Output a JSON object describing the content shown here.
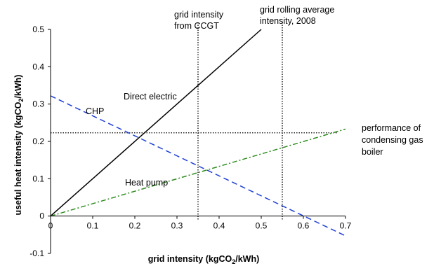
{
  "chart_data": {
    "type": "line",
    "xlabel": "grid intensity (kgCO",
    "xlabel_sub": "2",
    "xlabel_end": "/kWh)",
    "ylabel": "useful heat intensity (kgCO",
    "ylabel_sub": "2",
    "ylabel_end": "/kWh)",
    "xlim": [
      0,
      0.7
    ],
    "ylim": [
      -0.1,
      0.5
    ],
    "x_ticks": [
      "0",
      "0.1",
      "0.2",
      "0.3",
      "0.4",
      "0.5",
      "0.6",
      "0.7"
    ],
    "y_ticks": [
      "-0.1",
      "0",
      "0.1",
      "0.2",
      "0.3",
      "0.4",
      "0.5"
    ],
    "grid": false,
    "series": [
      {
        "name": "Direct electric",
        "color": "#000000",
        "style": "solid",
        "x": [
          0,
          0.5
        ],
        "y": [
          0,
          0.5
        ]
      },
      {
        "name": "CHP",
        "color": "#1f3fd6",
        "style": "dashed",
        "x": [
          0,
          0.7
        ],
        "y": [
          0.322,
          -0.053
        ]
      },
      {
        "name": "Heat pump",
        "color": "#2e8b1e",
        "style": "dash-dot",
        "x": [
          0,
          0.7
        ],
        "y": [
          0,
          0.233
        ]
      }
    ],
    "reference_lines": [
      {
        "orientation": "vertical",
        "x": 0.35,
        "label_lines": [
          "grid intensity",
          "from CCGT"
        ]
      },
      {
        "orientation": "vertical",
        "x": 0.55,
        "label_lines": [
          "grid rolling average",
          "intensity, 2008"
        ]
      },
      {
        "orientation": "horizontal",
        "y": 0.223,
        "label_lines": [
          "performance of",
          "condensing gas",
          "boiler"
        ]
      }
    ]
  }
}
